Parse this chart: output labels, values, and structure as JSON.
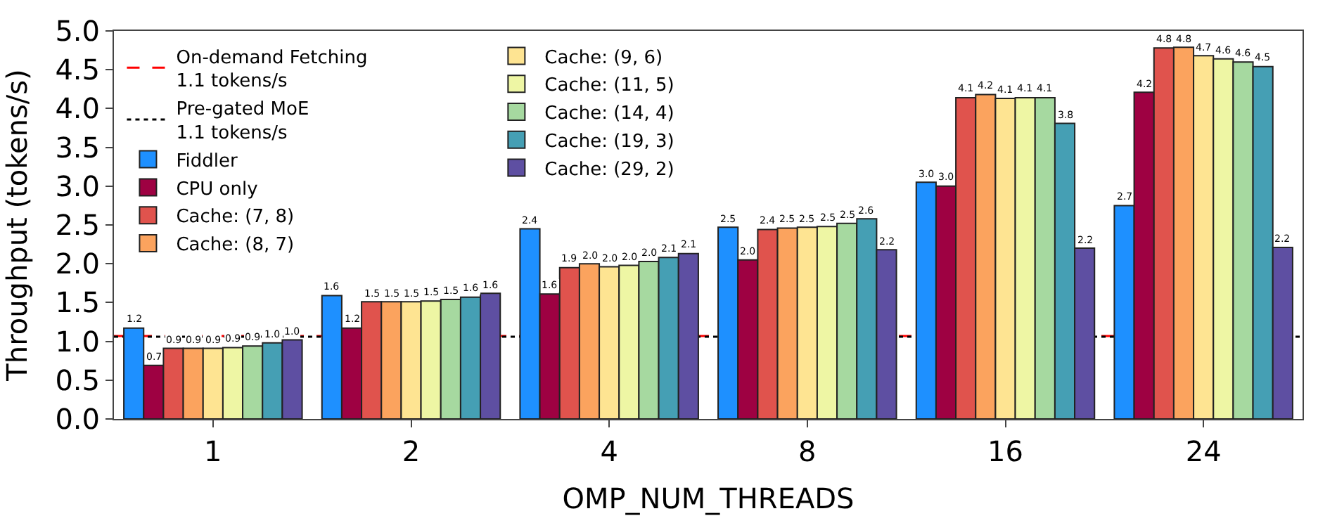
{
  "chart_data": {
    "type": "bar",
    "xlabel": "OMP_NUM_THREADS",
    "ylabel": "Throughput (tokens/s)",
    "categories": [
      "1",
      "2",
      "4",
      "8",
      "16",
      "24"
    ],
    "ylim": [
      0,
      5.0
    ],
    "yticks": [
      {
        "value": 0,
        "label": "0.0"
      },
      0.5,
      {
        "value": 1,
        "label": "1.0"
      },
      1.5,
      {
        "value": 2,
        "label": "2.0"
      },
      2.5,
      {
        "value": 3,
        "label": "3.0"
      },
      3.5,
      {
        "value": 4,
        "label": "4.0"
      },
      4.5,
      {
        "value": 5,
        "label": "5.0"
      }
    ],
    "grid": false,
    "legend": "top left",
    "series": [
      {
        "name": "Fiddler",
        "color": "#1e90ff",
        "values": [
          1.17,
          1.59,
          2.45,
          2.47,
          3.05,
          2.75
        ],
        "value_labels": [
          "1.2",
          "1.6",
          "2.4",
          "2.5",
          "3.0",
          "2.7"
        ]
      },
      {
        "name": "CPU only",
        "color": "#9e0142",
        "values": [
          0.69,
          1.17,
          1.61,
          2.05,
          3.0,
          4.21
        ],
        "value_labels": [
          "0.7",
          "1.2",
          "1.6",
          "2.0",
          "3.0",
          "4.2"
        ]
      },
      {
        "name": "Cache: (7, 8)",
        "color": "#e0534d",
        "values": [
          0.91,
          1.51,
          1.95,
          2.44,
          4.14,
          4.78
        ],
        "value_labels": [
          "0.9",
          "1.5",
          "1.9",
          "2.4",
          "4.1",
          "4.8"
        ]
      },
      {
        "name": "Cache: (8, 7)",
        "color": "#fba35e",
        "values": [
          0.91,
          1.51,
          2.0,
          2.46,
          4.18,
          4.79
        ],
        "value_labels": [
          "0.9",
          "1.5",
          "2.0",
          "2.5",
          "4.2",
          "4.8"
        ]
      },
      {
        "name": "Cache: (9, 6)",
        "color": "#fee492",
        "values": [
          0.91,
          1.51,
          1.96,
          2.47,
          4.13,
          4.68
        ],
        "value_labels": [
          "0.9",
          "1.5",
          "2.0",
          "2.5",
          "4.1",
          "4.7"
        ]
      },
      {
        "name": "Cache: (11, 5)",
        "color": "#eef6a4",
        "values": [
          0.92,
          1.52,
          1.98,
          2.48,
          4.14,
          4.64
        ],
        "value_labels": [
          "0.9",
          "1.5",
          "2.0",
          "2.5",
          "4.1",
          "4.6"
        ]
      },
      {
        "name": "Cache: (14, 4)",
        "color": "#a6d9a0",
        "values": [
          0.94,
          1.54,
          2.03,
          2.52,
          4.14,
          4.6
        ],
        "value_labels": [
          "0.9",
          "1.5",
          "2.0",
          "2.5",
          "4.1",
          "4.6"
        ]
      },
      {
        "name": "Cache: (19, 3)",
        "color": "#459fb4",
        "values": [
          0.98,
          1.57,
          2.08,
          2.58,
          3.81,
          4.54
        ],
        "value_labels": [
          "1.0",
          "1.6",
          "2.1",
          "2.6",
          "3.8",
          "4.5"
        ]
      },
      {
        "name": "Cache: (29, 2)",
        "color": "#5e4fa2",
        "values": [
          1.02,
          1.62,
          2.13,
          2.18,
          2.2,
          2.21
        ],
        "value_labels": [
          "1.0",
          "1.6",
          "2.1",
          "2.2",
          "2.2",
          "2.2"
        ]
      }
    ],
    "ref_lines": [
      {
        "axis": "y",
        "value": 1.07,
        "label": "On-demand Fetching\n1.1 tokens/s",
        "color": "#ff0000",
        "line_style": "dashed"
      },
      {
        "axis": "y",
        "value": 1.06,
        "label": "Pre-gated MoE\n1.1 tokens/s",
        "color": "#000000",
        "line_style": "dotted"
      }
    ]
  }
}
